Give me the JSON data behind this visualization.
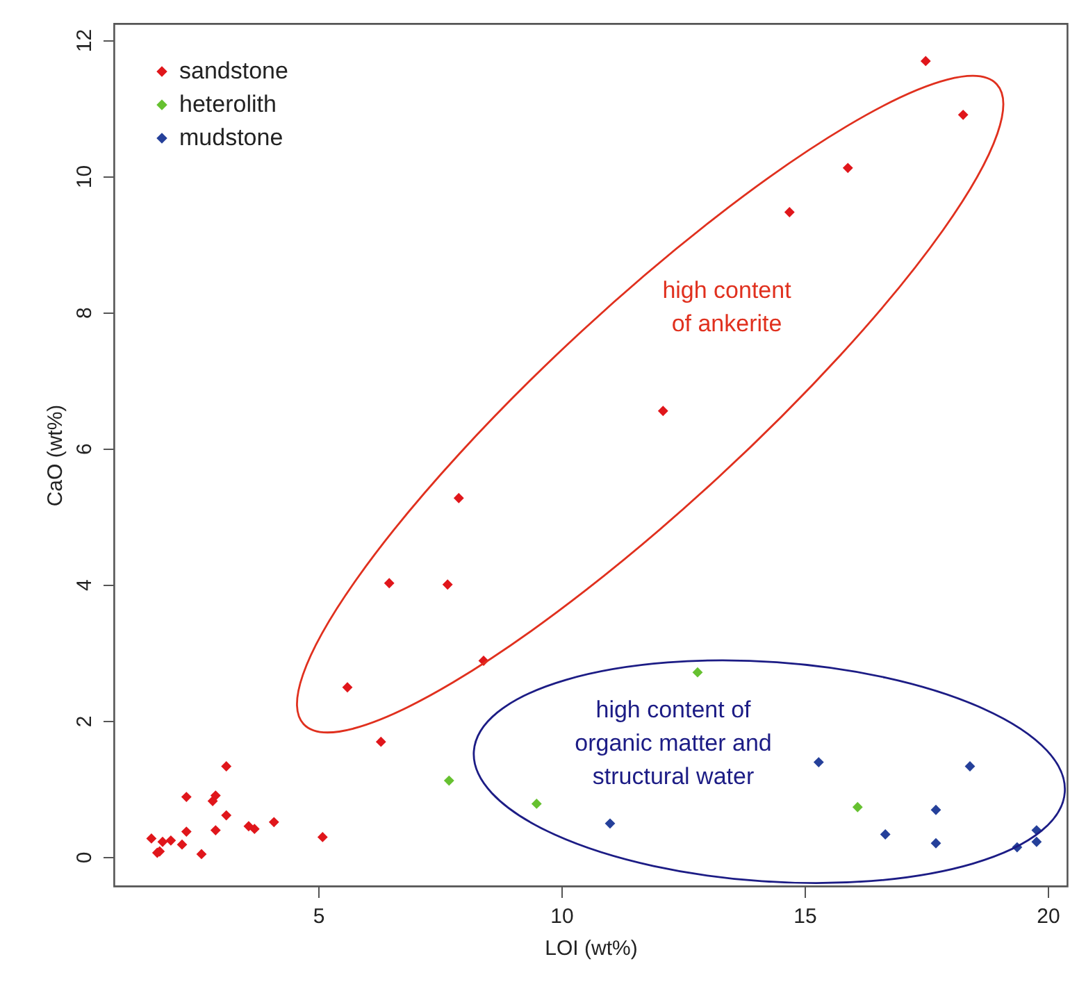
{
  "chart_data": {
    "type": "scatter",
    "xlabel": "LOI (wt%)",
    "ylabel": "CaO (wt%)",
    "xlim": [
      0.8,
      20.4
    ],
    "ylim": [
      -0.43,
      12.24
    ],
    "xticks": [
      5,
      10,
      15,
      20
    ],
    "yticks": [
      0,
      2,
      4,
      6,
      8,
      10,
      12
    ],
    "marker": "diamond",
    "legend": "top left",
    "grid": false,
    "annotations": [
      "high content\nof ankerite",
      "high content of\norganic matter and\nstructural water"
    ],
    "series": [
      {
        "name": "sandstone",
        "color": "#e0161b",
        "x": [
          17.49,
          18.26,
          15.89,
          14.69,
          12.09,
          7.89,
          6.46,
          7.66,
          8.4,
          5.6,
          6.29,
          3.11,
          2.29,
          2.83,
          2.89,
          3.11,
          3.57,
          3.69,
          4.09,
          5.09,
          1.57,
          1.8,
          1.97,
          1.69,
          1.74,
          2.2,
          2.29,
          2.89,
          2.6
        ],
        "values": [
          11.69,
          10.9,
          10.12,
          9.47,
          6.55,
          5.27,
          4.02,
          4.0,
          2.88,
          2.49,
          1.69,
          1.33,
          0.88,
          0.82,
          0.9,
          0.61,
          0.45,
          0.41,
          0.51,
          0.29,
          0.27,
          0.22,
          0.24,
          0.06,
          0.08,
          0.18,
          0.37,
          0.39,
          0.04
        ]
      },
      {
        "name": "heterolith",
        "color": "#66c130",
        "x": [
          12.8,
          16.09,
          7.69,
          9.49
        ],
        "values": [
          2.71,
          0.73,
          1.12,
          0.78
        ]
      },
      {
        "name": "mudstone",
        "color": "#25409a",
        "x": [
          15.29,
          18.4,
          17.7,
          16.66,
          17.7,
          19.37,
          19.77,
          19.77,
          11.0
        ],
        "values": [
          1.39,
          1.33,
          0.69,
          0.33,
          0.2,
          0.14,
          0.39,
          0.22,
          0.49
        ]
      }
    ]
  }
}
